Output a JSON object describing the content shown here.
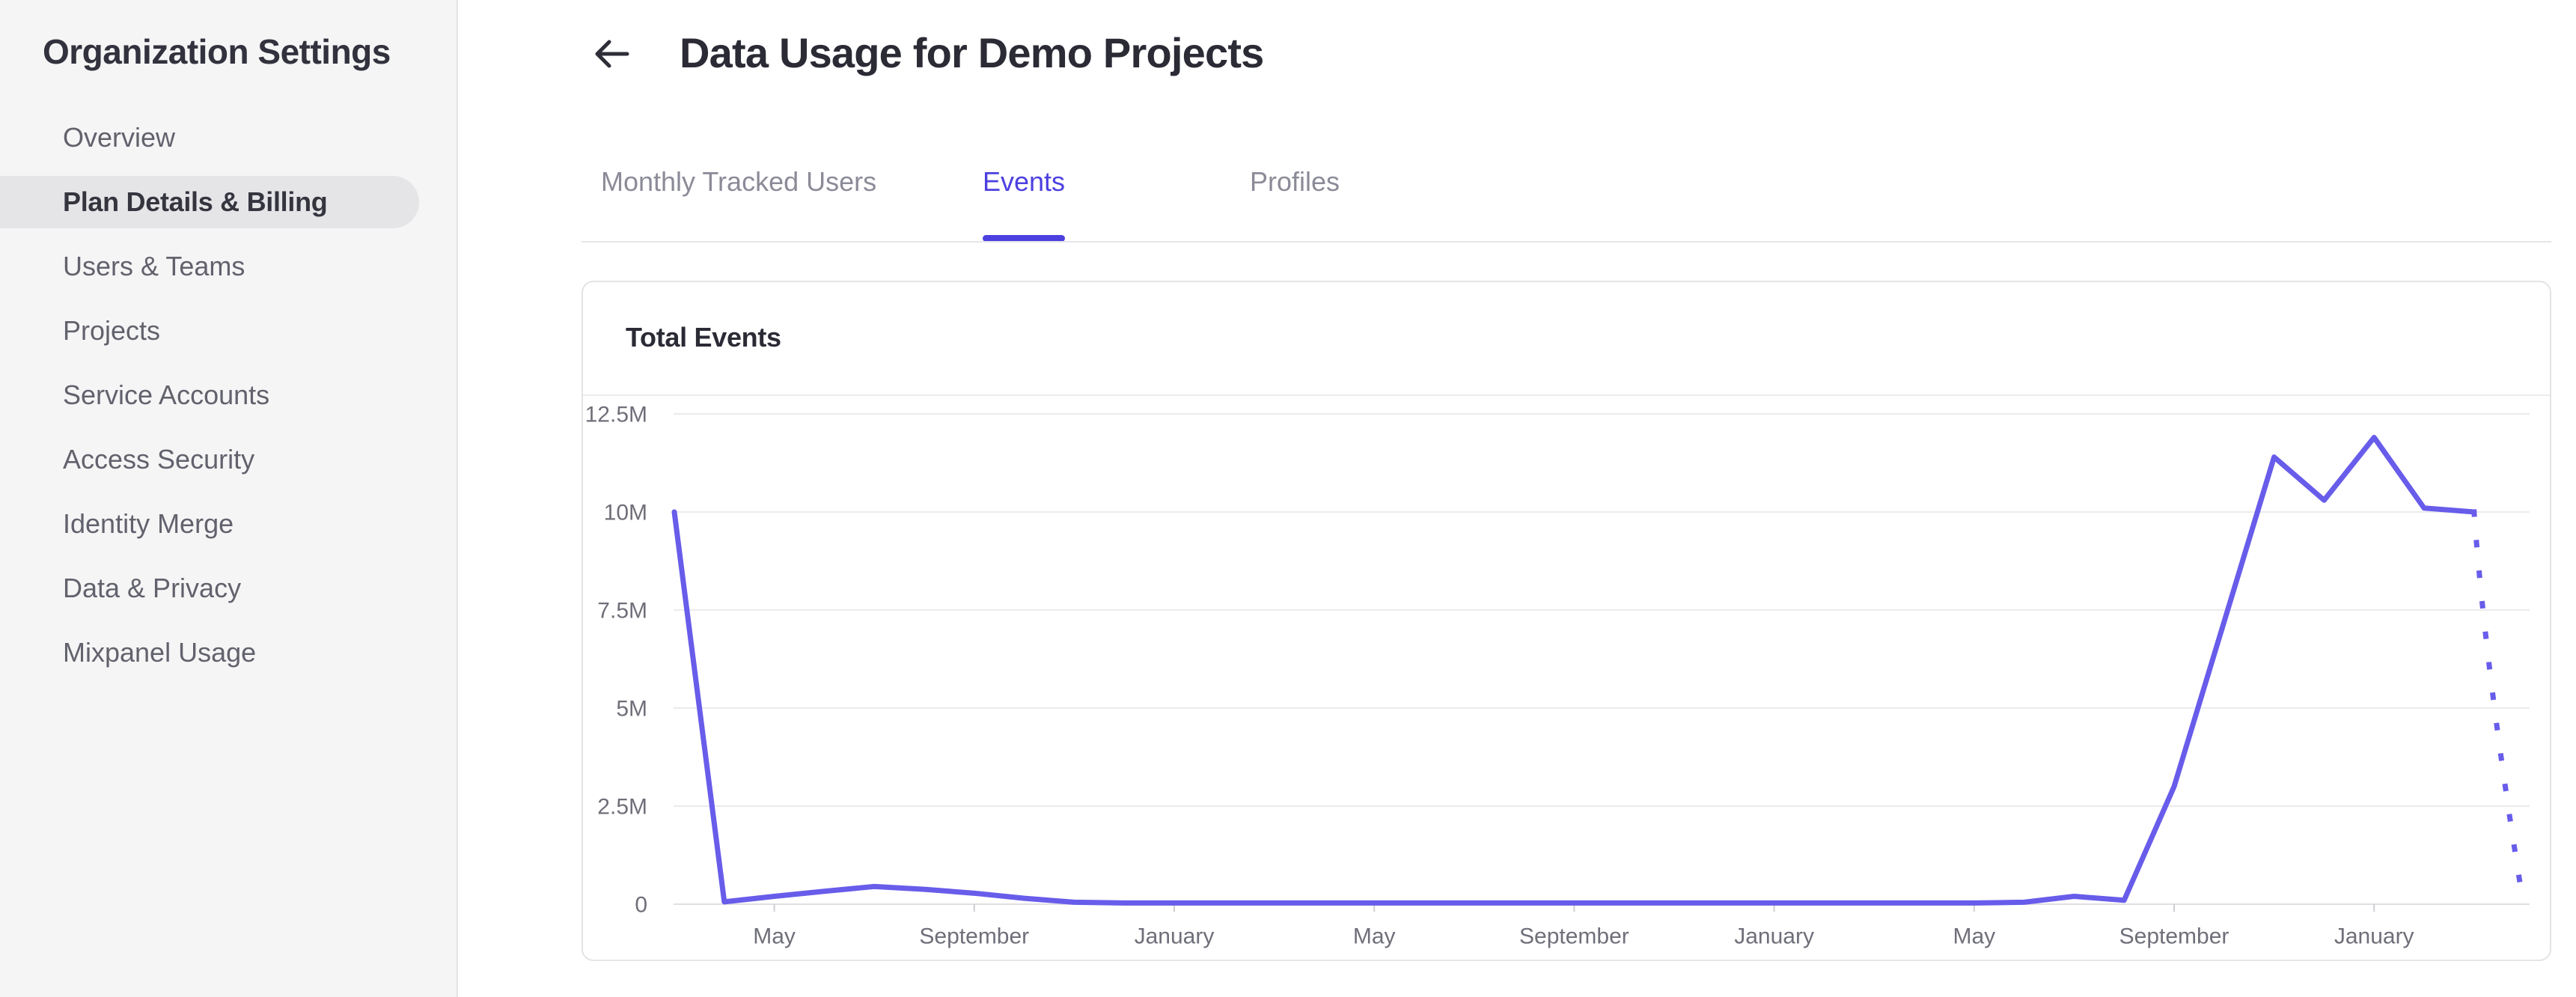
{
  "sidebar": {
    "title": "Organization Settings",
    "items": [
      {
        "label": "Overview",
        "selected": false
      },
      {
        "label": "Plan Details & Billing",
        "selected": true
      },
      {
        "label": "Users & Teams",
        "selected": false
      },
      {
        "label": "Projects",
        "selected": false
      },
      {
        "label": "Service Accounts",
        "selected": false
      },
      {
        "label": "Access Security",
        "selected": false
      },
      {
        "label": "Identity Merge",
        "selected": false
      },
      {
        "label": "Data & Privacy",
        "selected": false
      },
      {
        "label": "Mixpanel Usage",
        "selected": false
      }
    ]
  },
  "header": {
    "title": "Data Usage for Demo Projects"
  },
  "tabs": [
    {
      "label": "Monthly Tracked Users",
      "active": false
    },
    {
      "label": "Events",
      "active": true
    },
    {
      "label": "Profiles",
      "active": false
    }
  ],
  "card": {
    "title": "Total Events"
  },
  "colors": {
    "accent": "#4c40e0",
    "line": "#685cea",
    "sidebar_bg": "#f5f5f6",
    "selected_pill": "#e5e5e8",
    "gridline": "#ebebee",
    "axis_line": "#dfdfe3",
    "tick": "#cdcdd3",
    "axis_label": "#6f6f7a"
  },
  "chart_data": {
    "type": "line",
    "title": "Total Events",
    "unit": "events, millions",
    "ylim": [
      0,
      12.5
    ],
    "grid": true,
    "legend": false,
    "y_tick_labels": [
      "0",
      "2.5M",
      "5M",
      "7.5M",
      "10M",
      "12.5M"
    ],
    "y_tick_values": [
      0,
      2.5,
      5,
      7.5,
      10,
      12.5
    ],
    "x_tick_labels": [
      "May",
      "September",
      "January",
      "May",
      "September",
      "January",
      "May",
      "September",
      "January"
    ],
    "x_tick_month_indices": [
      2,
      6,
      10,
      14,
      18,
      22,
      26,
      30,
      34
    ],
    "series": [
      {
        "name": "Total Events",
        "style": "solid",
        "values_millions": [
          10,
          0.06,
          0.2,
          0.33,
          0.45,
          0.38,
          0.28,
          0.15,
          0.05,
          0.03,
          0.03,
          0.03,
          0.03,
          0.03,
          0.03,
          0.03,
          0.03,
          0.03,
          0.03,
          0.03,
          0.03,
          0.03,
          0.03,
          0.03,
          0.03,
          0.03,
          0.03,
          0.05,
          0.2,
          0.1,
          3.0,
          7.2,
          11.4,
          10.3,
          11.9,
          10.1,
          10.0
        ]
      }
    ],
    "projection": {
      "style": "dotted",
      "start_month_index": 36,
      "start_value_millions": 10.0,
      "end_month_index": 37,
      "end_value_millions": 0.25
    }
  }
}
